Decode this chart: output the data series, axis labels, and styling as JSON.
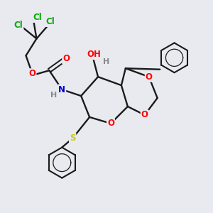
{
  "background_color": "#e8eaf0",
  "bond_color": "#1a1a1a",
  "atom_colors": {
    "O": "#ff0000",
    "N": "#0000cc",
    "S": "#cccc00",
    "Cl": "#00aa00",
    "H": "#888888",
    "C": "#1a1a1a"
  },
  "figsize": [
    3.0,
    3.0
  ],
  "dpi": 100
}
